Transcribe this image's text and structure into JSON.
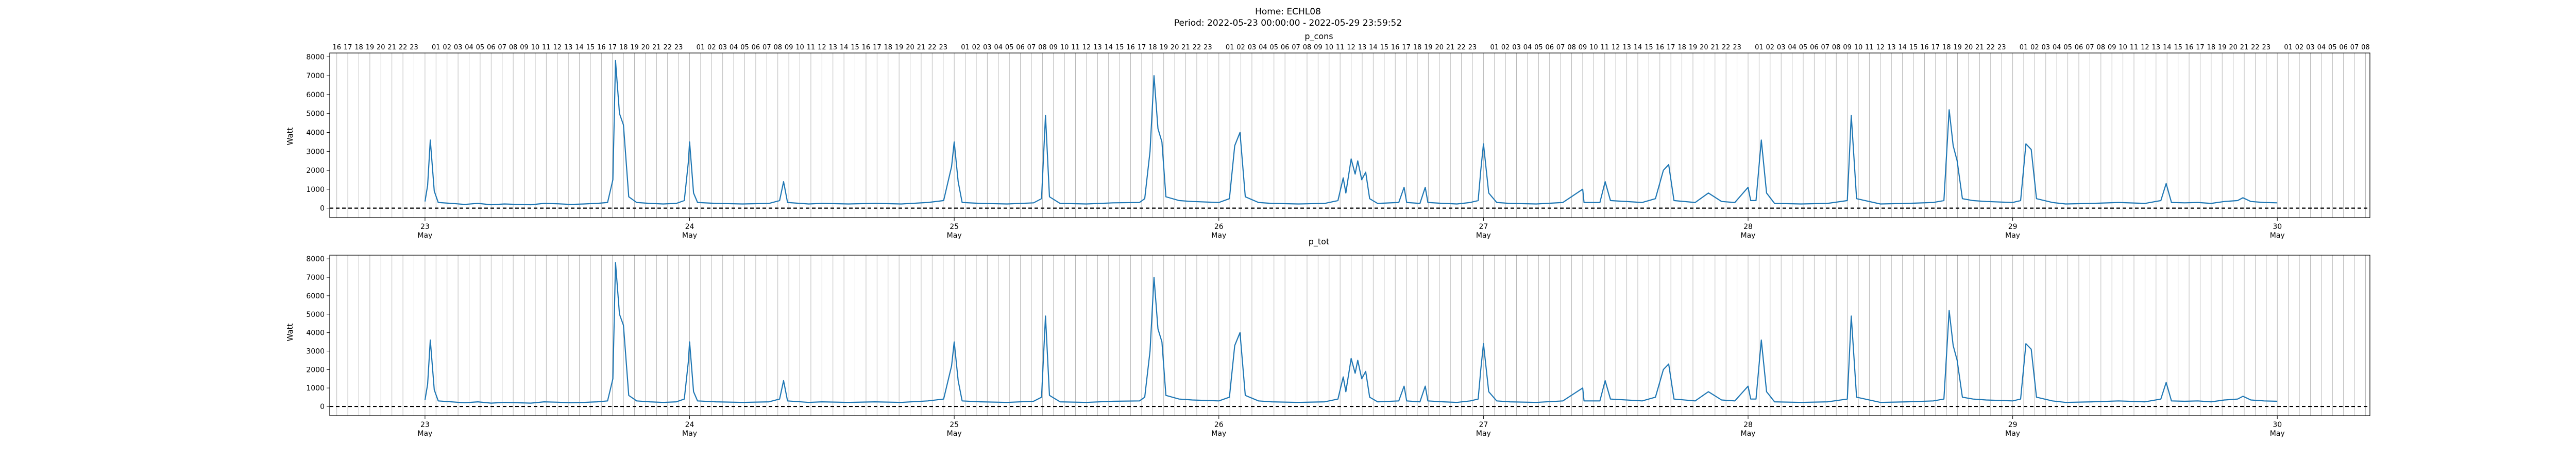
{
  "figure": {
    "title_line1": "Home: ECHL08",
    "title_line2": "Period: 2022-05-23 00:00:00 - 2022-05-29 23:59:52"
  },
  "colors": {
    "series": "#1f77b4",
    "grid": "#b0b0b0",
    "zero_line": "#000000"
  },
  "chart_data": [
    {
      "type": "line",
      "title": "p_cons",
      "ylabel": "Watt",
      "xlabel": "",
      "ylim": [
        -500,
        8200
      ],
      "yticks": [
        0,
        1000,
        2000,
        3000,
        4000,
        5000,
        6000,
        7000,
        8000
      ],
      "xlim": [
        22.64,
        30.35
      ],
      "x_unit": "day of May 2022",
      "xticks": [
        {
          "value": 23,
          "label": "23",
          "sublabel": "May"
        },
        {
          "value": 24,
          "label": "24",
          "sublabel": "May"
        },
        {
          "value": 25,
          "label": "25",
          "sublabel": "May"
        },
        {
          "value": 26,
          "label": "26",
          "sublabel": "May"
        },
        {
          "value": 27,
          "label": "27",
          "sublabel": "May"
        },
        {
          "value": 28,
          "label": "28",
          "sublabel": "May"
        },
        {
          "value": 29,
          "label": "29",
          "sublabel": "May"
        },
        {
          "value": 30,
          "label": "30",
          "sublabel": "May"
        }
      ],
      "top_hour_axis": true,
      "hour_grid": true,
      "zero_line": "dashed",
      "series": [
        {
          "points": "SERIES_A"
        }
      ]
    },
    {
      "type": "line",
      "title": "p_tot",
      "ylabel": "Watt",
      "xlabel": "",
      "ylim": [
        -500,
        8200
      ],
      "yticks": [
        0,
        1000,
        2000,
        3000,
        4000,
        5000,
        6000,
        7000,
        8000
      ],
      "xlim": [
        22.64,
        30.35
      ],
      "x_unit": "day of May 2022",
      "xticks": [
        {
          "value": 23,
          "label": "23",
          "sublabel": "May"
        },
        {
          "value": 24,
          "label": "24",
          "sublabel": "May"
        },
        {
          "value": 25,
          "label": "25",
          "sublabel": "May"
        },
        {
          "value": 26,
          "label": "26",
          "sublabel": "May"
        },
        {
          "value": 27,
          "label": "27",
          "sublabel": "May"
        },
        {
          "value": 28,
          "label": "28",
          "sublabel": "May"
        },
        {
          "value": 29,
          "label": "29",
          "sublabel": "May"
        },
        {
          "value": 30,
          "label": "30",
          "sublabel": "May"
        }
      ],
      "top_hour_axis": false,
      "hour_grid": true,
      "zero_line": "dashed",
      "series": [
        {
          "points": "SERIES_A"
        }
      ]
    }
  ],
  "series_points": {
    "SERIES_A": [
      [
        23.0,
        350
      ],
      [
        23.01,
        1200
      ],
      [
        23.02,
        3600
      ],
      [
        23.035,
        900
      ],
      [
        23.05,
        300
      ],
      [
        23.1,
        250
      ],
      [
        23.15,
        200
      ],
      [
        23.2,
        250
      ],
      [
        23.25,
        180
      ],
      [
        23.3,
        220
      ],
      [
        23.35,
        200
      ],
      [
        23.4,
        180
      ],
      [
        23.45,
        250
      ],
      [
        23.5,
        230
      ],
      [
        23.55,
        200
      ],
      [
        23.6,
        220
      ],
      [
        23.65,
        250
      ],
      [
        23.69,
        300
      ],
      [
        23.71,
        1500
      ],
      [
        23.72,
        7800
      ],
      [
        23.735,
        5000
      ],
      [
        23.75,
        4400
      ],
      [
        23.77,
        600
      ],
      [
        23.8,
        300
      ],
      [
        23.85,
        250
      ],
      [
        23.9,
        220
      ],
      [
        23.95,
        250
      ],
      [
        23.98,
        400
      ],
      [
        23.995,
        2400
      ],
      [
        24.0,
        3500
      ],
      [
        24.015,
        800
      ],
      [
        24.03,
        300
      ],
      [
        24.1,
        250
      ],
      [
        24.2,
        220
      ],
      [
        24.3,
        250
      ],
      [
        24.34,
        400
      ],
      [
        24.355,
        1400
      ],
      [
        24.37,
        300
      ],
      [
        24.45,
        220
      ],
      [
        24.5,
        250
      ],
      [
        24.6,
        220
      ],
      [
        24.7,
        250
      ],
      [
        24.8,
        220
      ],
      [
        24.9,
        300
      ],
      [
        24.96,
        400
      ],
      [
        24.99,
        2200
      ],
      [
        25.0,
        3500
      ],
      [
        25.015,
        1400
      ],
      [
        25.03,
        300
      ],
      [
        25.1,
        250
      ],
      [
        25.2,
        220
      ],
      [
        25.3,
        280
      ],
      [
        25.33,
        500
      ],
      [
        25.345,
        4900
      ],
      [
        25.36,
        600
      ],
      [
        25.4,
        250
      ],
      [
        25.5,
        220
      ],
      [
        25.6,
        280
      ],
      [
        25.7,
        300
      ],
      [
        25.72,
        500
      ],
      [
        25.74,
        3000
      ],
      [
        25.755,
        7000
      ],
      [
        25.77,
        4200
      ],
      [
        25.785,
        3500
      ],
      [
        25.8,
        600
      ],
      [
        25.85,
        400
      ],
      [
        25.9,
        350
      ],
      [
        26.0,
        300
      ],
      [
        26.04,
        500
      ],
      [
        26.06,
        3300
      ],
      [
        26.08,
        4000
      ],
      [
        26.1,
        600
      ],
      [
        26.15,
        300
      ],
      [
        26.2,
        250
      ],
      [
        26.3,
        220
      ],
      [
        26.4,
        250
      ],
      [
        26.45,
        400
      ],
      [
        26.47,
        1600
      ],
      [
        26.48,
        800
      ],
      [
        26.5,
        2600
      ],
      [
        26.515,
        1800
      ],
      [
        26.525,
        2500
      ],
      [
        26.54,
        1500
      ],
      [
        26.555,
        1900
      ],
      [
        26.57,
        500
      ],
      [
        26.6,
        250
      ],
      [
        26.68,
        300
      ],
      [
        26.7,
        1100
      ],
      [
        26.71,
        300
      ],
      [
        26.76,
        250
      ],
      [
        26.78,
        1100
      ],
      [
        26.79,
        300
      ],
      [
        26.85,
        250
      ],
      [
        26.9,
        220
      ],
      [
        26.95,
        300
      ],
      [
        26.98,
        400
      ],
      [
        26.99,
        2000
      ],
      [
        27.0,
        3400
      ],
      [
        27.02,
        800
      ],
      [
        27.05,
        300
      ],
      [
        27.1,
        250
      ],
      [
        27.2,
        220
      ],
      [
        27.3,
        300
      ],
      [
        27.375,
        1000
      ],
      [
        27.38,
        300
      ],
      [
        27.44,
        300
      ],
      [
        27.46,
        1400
      ],
      [
        27.48,
        400
      ],
      [
        27.6,
        300
      ],
      [
        27.65,
        500
      ],
      [
        27.68,
        2000
      ],
      [
        27.7,
        2300
      ],
      [
        27.72,
        400
      ],
      [
        27.8,
        300
      ],
      [
        27.85,
        800
      ],
      [
        27.9,
        350
      ],
      [
        27.95,
        300
      ],
      [
        28.0,
        1100
      ],
      [
        28.01,
        400
      ],
      [
        28.03,
        400
      ],
      [
        28.05,
        3600
      ],
      [
        28.07,
        800
      ],
      [
        28.1,
        250
      ],
      [
        28.2,
        220
      ],
      [
        28.3,
        250
      ],
      [
        28.375,
        400
      ],
      [
        28.39,
        4900
      ],
      [
        28.41,
        500
      ],
      [
        28.5,
        220
      ],
      [
        28.6,
        250
      ],
      [
        28.7,
        300
      ],
      [
        28.74,
        400
      ],
      [
        28.76,
        5200
      ],
      [
        28.775,
        3300
      ],
      [
        28.79,
        2500
      ],
      [
        28.81,
        500
      ],
      [
        28.85,
        400
      ],
      [
        28.9,
        350
      ],
      [
        29.0,
        300
      ],
      [
        29.03,
        400
      ],
      [
        29.05,
        3400
      ],
      [
        29.07,
        3100
      ],
      [
        29.09,
        500
      ],
      [
        29.15,
        300
      ],
      [
        29.2,
        220
      ],
      [
        29.3,
        250
      ],
      [
        29.4,
        300
      ],
      [
        29.5,
        250
      ],
      [
        29.56,
        400
      ],
      [
        29.58,
        1300
      ],
      [
        29.6,
        300
      ],
      [
        29.65,
        280
      ],
      [
        29.7,
        300
      ],
      [
        29.75,
        250
      ],
      [
        29.8,
        350
      ],
      [
        29.85,
        400
      ],
      [
        29.87,
        550
      ],
      [
        29.9,
        350
      ],
      [
        29.95,
        300
      ],
      [
        30.0,
        280
      ]
    ]
  }
}
